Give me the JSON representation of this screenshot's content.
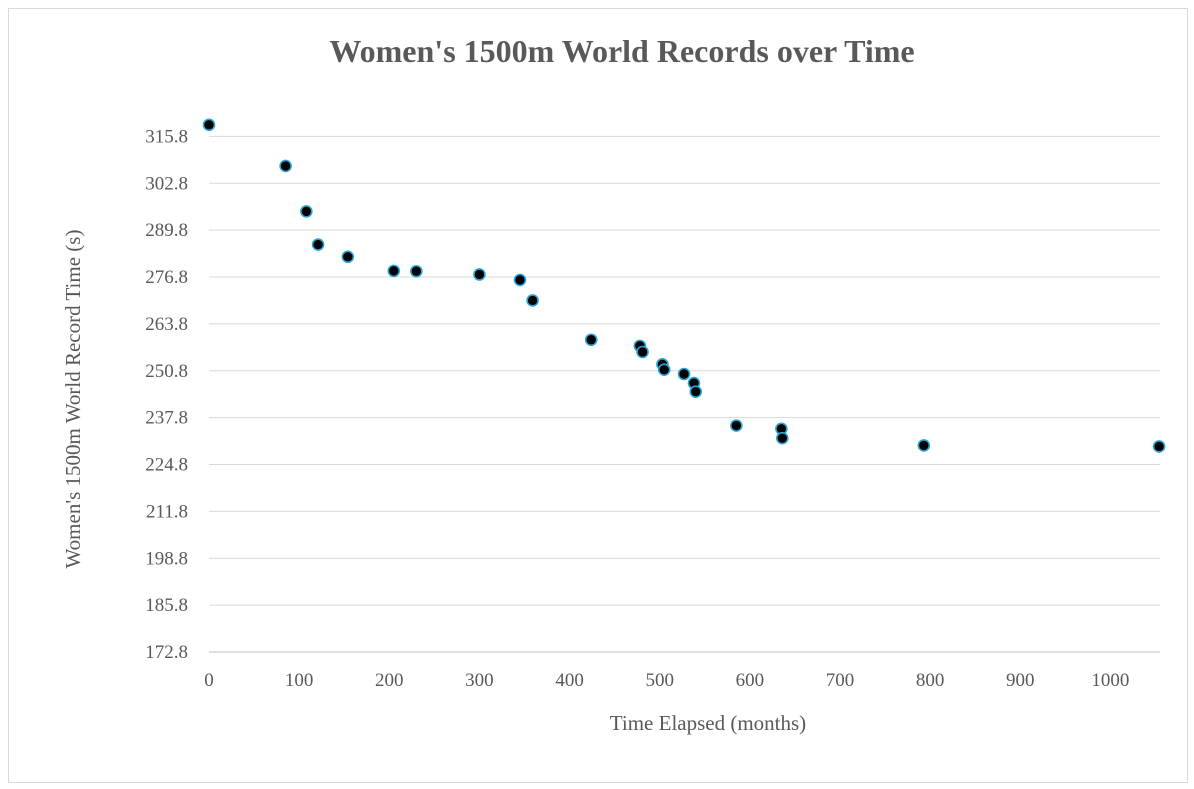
{
  "chart_data": {
    "type": "scatter",
    "title": "Women's 1500m World Records over Time",
    "xlabel": "Time Elapsed (months)",
    "ylabel": "Women's 1500m World Record Time (s)",
    "xlim": [
      0,
      1055
    ],
    "ylim": [
      172.8,
      320.9
    ],
    "x_ticks": [
      0,
      100,
      200,
      300,
      400,
      500,
      600,
      700,
      800,
      900,
      1000
    ],
    "y_ticks": [
      172.8,
      185.8,
      198.8,
      211.8,
      224.8,
      237.8,
      250.8,
      263.8,
      276.8,
      289.8,
      302.8,
      315.8
    ],
    "x_tick_labels": [
      "0",
      "100",
      "200",
      "300",
      "400",
      "500",
      "600",
      "700",
      "800",
      "900",
      "1000"
    ],
    "y_tick_labels": [
      "172.8",
      "185.8",
      "198.8",
      "211.8",
      "224.8",
      "237.8",
      "250.8",
      "263.8",
      "276.8",
      "289.8",
      "302.8",
      "315.8"
    ],
    "grid": true,
    "legend": "none",
    "colors": {
      "marker_fill": "#000000",
      "marker_edge": "#2aa5d6",
      "grid": "#d9d9d9",
      "text": "#595959"
    },
    "series": [
      {
        "x": [
          0,
          85,
          108,
          121,
          154,
          205,
          230,
          300,
          345,
          359,
          424,
          478,
          481,
          503,
          505,
          527,
          538,
          540,
          585,
          635,
          636,
          793,
          1054
        ],
        "y": [
          319.0,
          307.6,
          295.0,
          285.8,
          282.4,
          278.5,
          278.4,
          277.5,
          276.0,
          270.3,
          259.4,
          257.7,
          256.0,
          252.6,
          251.1,
          249.9,
          247.4,
          245.0,
          235.6,
          234.7,
          232.1,
          230.1,
          229.8
        ]
      }
    ]
  }
}
